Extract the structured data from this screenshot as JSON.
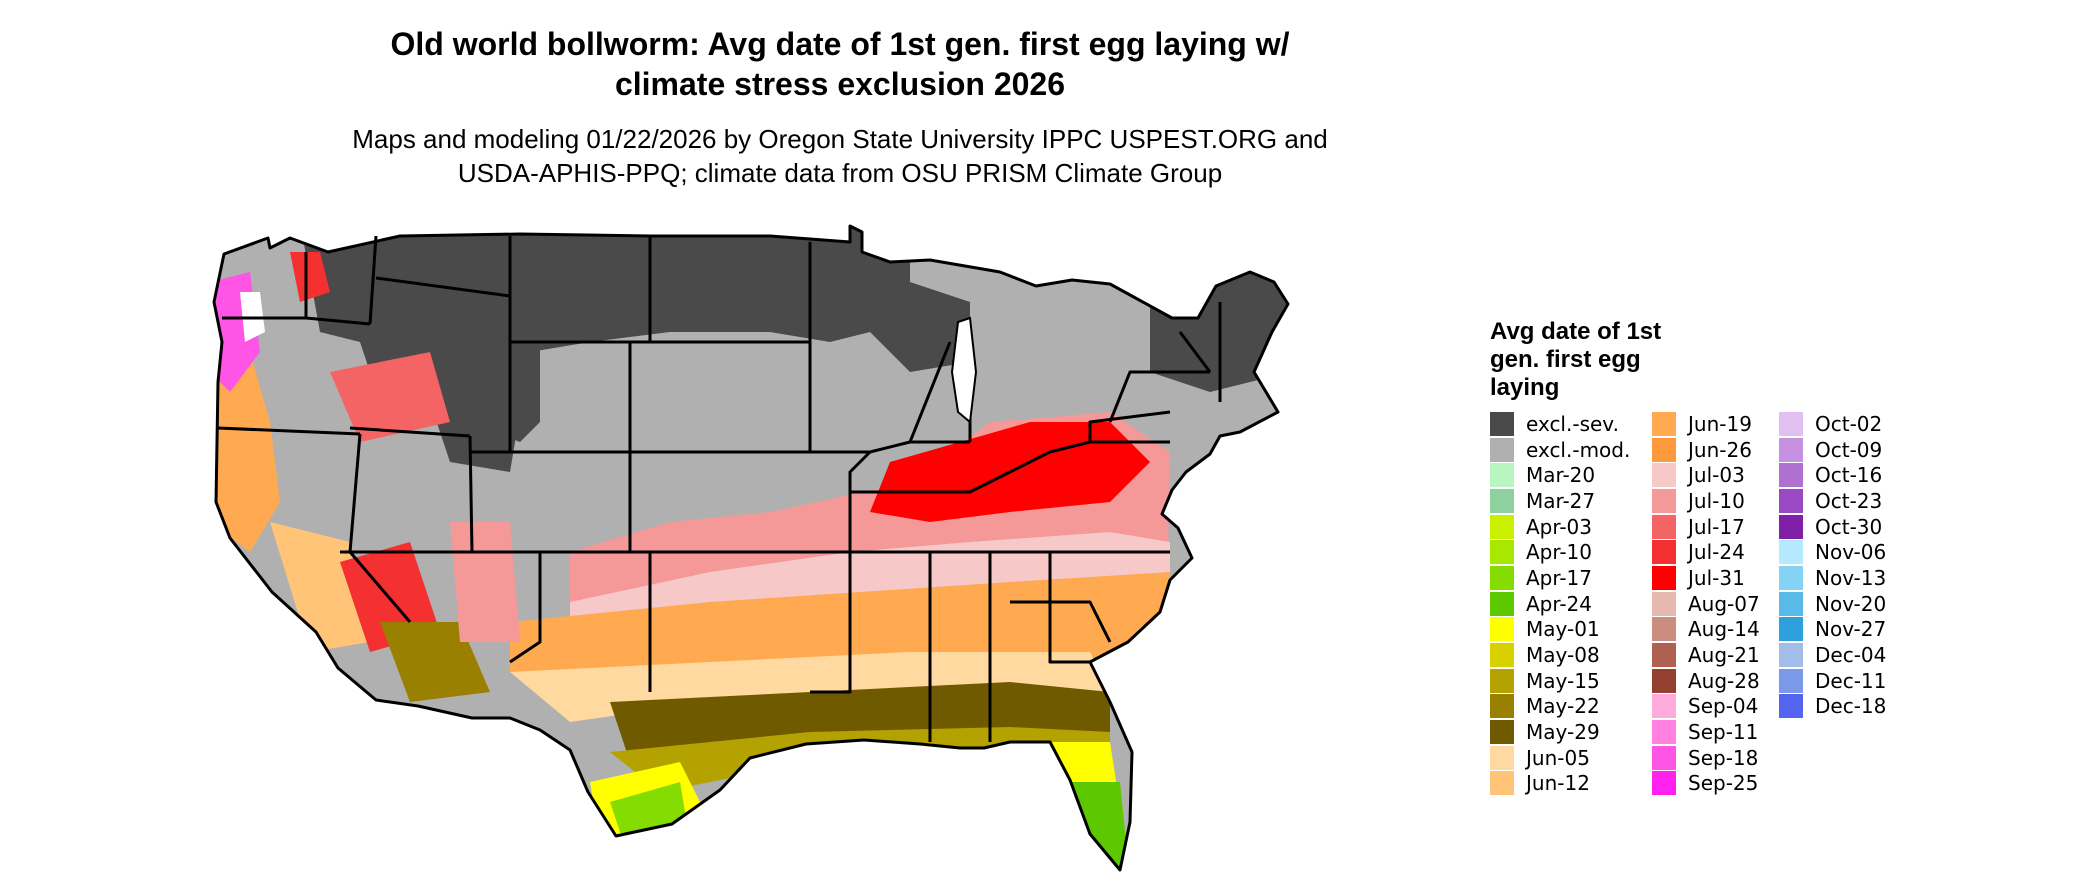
{
  "title": "Old world bollworm: Avg date of 1st gen. first egg laying w/\nclimate stress exclusion 2026",
  "subtitle": "Maps and modeling 01/22/2026 by Oregon State University IPPC USPEST.ORG and\nUSDA-APHIS-PPQ; climate data from OSU PRISM Climate Group",
  "legend": {
    "title": "Avg date of 1st\ngen. first egg\nlaying",
    "columns": [
      [
        {
          "label": "excl.-sev.",
          "color": "#4a4a4a"
        },
        {
          "label": "excl.-mod.",
          "color": "#b0b0b0"
        },
        {
          "label": "Mar-20",
          "color": "#b8f5c0"
        },
        {
          "label": "Mar-27",
          "color": "#8fd19e"
        },
        {
          "label": "Apr-03",
          "color": "#c8f000"
        },
        {
          "label": "Apr-10",
          "color": "#a8e800"
        },
        {
          "label": "Apr-17",
          "color": "#84dc00"
        },
        {
          "label": "Apr-24",
          "color": "#5cc800"
        },
        {
          "label": "May-01",
          "color": "#ffff00"
        },
        {
          "label": "May-08",
          "color": "#d9d000"
        },
        {
          "label": "May-15",
          "color": "#b3a200"
        },
        {
          "label": "May-22",
          "color": "#9a8000"
        },
        {
          "label": "May-29",
          "color": "#705a00"
        },
        {
          "label": "Jun-05",
          "color": "#ffd9a0"
        },
        {
          "label": "Jun-12",
          "color": "#ffc478"
        }
      ],
      [
        {
          "label": "Jun-19",
          "color": "#ffaa50"
        },
        {
          "label": "Jun-26",
          "color": "#ff9a3c"
        },
        {
          "label": "Jul-03",
          "color": "#f7c8c8"
        },
        {
          "label": "Jul-10",
          "color": "#f49898"
        },
        {
          "label": "Jul-17",
          "color": "#f46464"
        },
        {
          "label": "Jul-24",
          "color": "#f43030"
        },
        {
          "label": "Jul-31",
          "color": "#ff0000"
        },
        {
          "label": "Aug-07",
          "color": "#e6b8b0"
        },
        {
          "label": "Aug-14",
          "color": "#cc8c80"
        },
        {
          "label": "Aug-21",
          "color": "#b06050"
        },
        {
          "label": "Aug-28",
          "color": "#944030"
        },
        {
          "label": "Sep-04",
          "color": "#ffaadd"
        },
        {
          "label": "Sep-11",
          "color": "#ff80e0"
        },
        {
          "label": "Sep-18",
          "color": "#ff55e6"
        },
        {
          "label": "Sep-25",
          "color": "#ff22ee"
        }
      ],
      [
        {
          "label": "Oct-02",
          "color": "#e0c0f0"
        },
        {
          "label": "Oct-09",
          "color": "#c890e0"
        },
        {
          "label": "Oct-16",
          "color": "#b070d0"
        },
        {
          "label": "Oct-23",
          "color": "#9a48c4"
        },
        {
          "label": "Oct-30",
          "color": "#8020a8"
        },
        {
          "label": "Nov-06",
          "color": "#b4eaff"
        },
        {
          "label": "Nov-13",
          "color": "#84d2f4"
        },
        {
          "label": "Nov-20",
          "color": "#58bae8"
        },
        {
          "label": "Nov-27",
          "color": "#2ea0dc"
        },
        {
          "label": "Dec-04",
          "color": "#a4bce8"
        },
        {
          "label": "Dec-11",
          "color": "#7c98e8"
        },
        {
          "label": "Dec-18",
          "color": "#5464f0"
        }
      ]
    ]
  }
}
